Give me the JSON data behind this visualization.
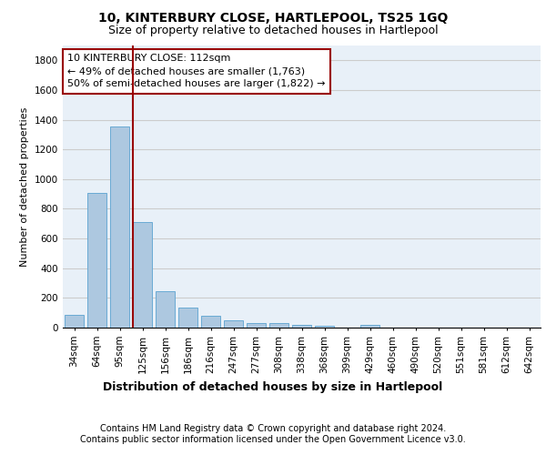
{
  "title": "10, KINTERBURY CLOSE, HARTLEPOOL, TS25 1GQ",
  "subtitle": "Size of property relative to detached houses in Hartlepool",
  "xlabel": "Distribution of detached houses by size in Hartlepool",
  "ylabel": "Number of detached properties",
  "categories": [
    "34sqm",
    "64sqm",
    "95sqm",
    "125sqm",
    "156sqm",
    "186sqm",
    "216sqm",
    "247sqm",
    "277sqm",
    "308sqm",
    "338sqm",
    "368sqm",
    "399sqm",
    "429sqm",
    "460sqm",
    "490sqm",
    "520sqm",
    "551sqm",
    "581sqm",
    "612sqm",
    "642sqm"
  ],
  "values": [
    85,
    910,
    1355,
    710,
    248,
    135,
    80,
    50,
    30,
    30,
    20,
    15,
    0,
    20,
    0,
    0,
    0,
    0,
    0,
    0,
    0
  ],
  "bar_color": "#adc8e0",
  "bar_edgecolor": "#6aaad4",
  "vline_color": "#990000",
  "annotation_text": "10 KINTERBURY CLOSE: 112sqm\n← 49% of detached houses are smaller (1,763)\n50% of semi-detached houses are larger (1,822) →",
  "annotation_box_color": "#ffffff",
  "annotation_box_edgecolor": "#990000",
  "ylim": [
    0,
    1900
  ],
  "yticks": [
    0,
    200,
    400,
    600,
    800,
    1000,
    1200,
    1400,
    1600,
    1800
  ],
  "grid_color": "#cccccc",
  "background_color": "#e8f0f8",
  "footer_line1": "Contains HM Land Registry data © Crown copyright and database right 2024.",
  "footer_line2": "Contains public sector information licensed under the Open Government Licence v3.0.",
  "title_fontsize": 10,
  "subtitle_fontsize": 9,
  "ylabel_fontsize": 8,
  "xlabel_fontsize": 9,
  "annotation_fontsize": 8,
  "footer_fontsize": 7,
  "tick_fontsize": 7.5
}
